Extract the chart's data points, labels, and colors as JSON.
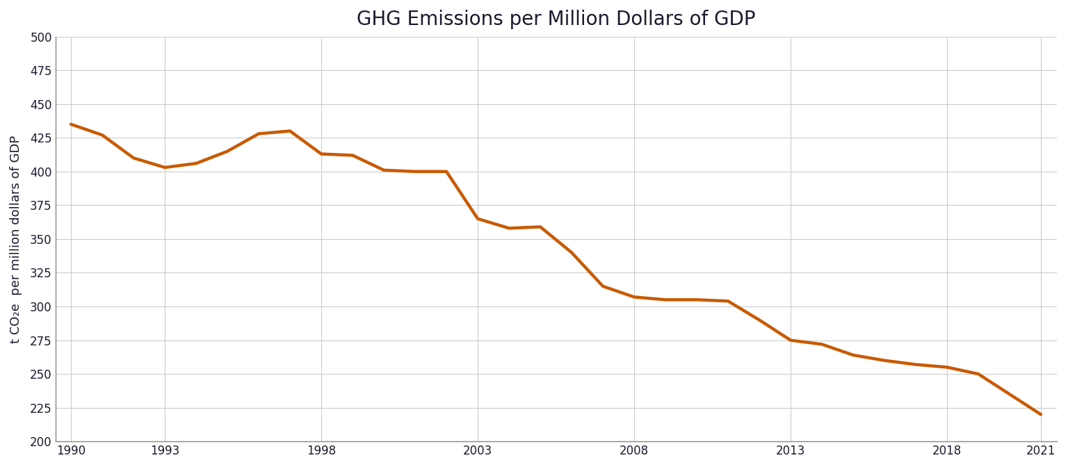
{
  "title": "GHG Emissions per Million Dollars of GDP",
  "ylabel": "t CO₂e  per million dollars of GDP",
  "line_color": "#c85a00",
  "line_width": 3.2,
  "background_color": "#ffffff",
  "grid_color": "#cccccc",
  "ylim": [
    200,
    500
  ],
  "yticks": [
    200,
    225,
    250,
    275,
    300,
    325,
    350,
    375,
    400,
    425,
    450,
    475,
    500
  ],
  "xticks": [
    1990,
    1993,
    1998,
    2003,
    2008,
    2013,
    2018,
    2021
  ],
  "years": [
    1990,
    1991,
    1992,
    1993,
    1994,
    1995,
    1996,
    1997,
    1998,
    1999,
    2000,
    2001,
    2002,
    2003,
    2004,
    2005,
    2006,
    2007,
    2008,
    2009,
    2010,
    2011,
    2012,
    2013,
    2014,
    2015,
    2016,
    2017,
    2018,
    2019,
    2020,
    2021
  ],
  "values": [
    435,
    427,
    410,
    403,
    406,
    415,
    428,
    430,
    413,
    412,
    401,
    400,
    400,
    365,
    358,
    359,
    340,
    315,
    307,
    305,
    305,
    304,
    290,
    275,
    272,
    264,
    260,
    257,
    255,
    250,
    235,
    220
  ]
}
